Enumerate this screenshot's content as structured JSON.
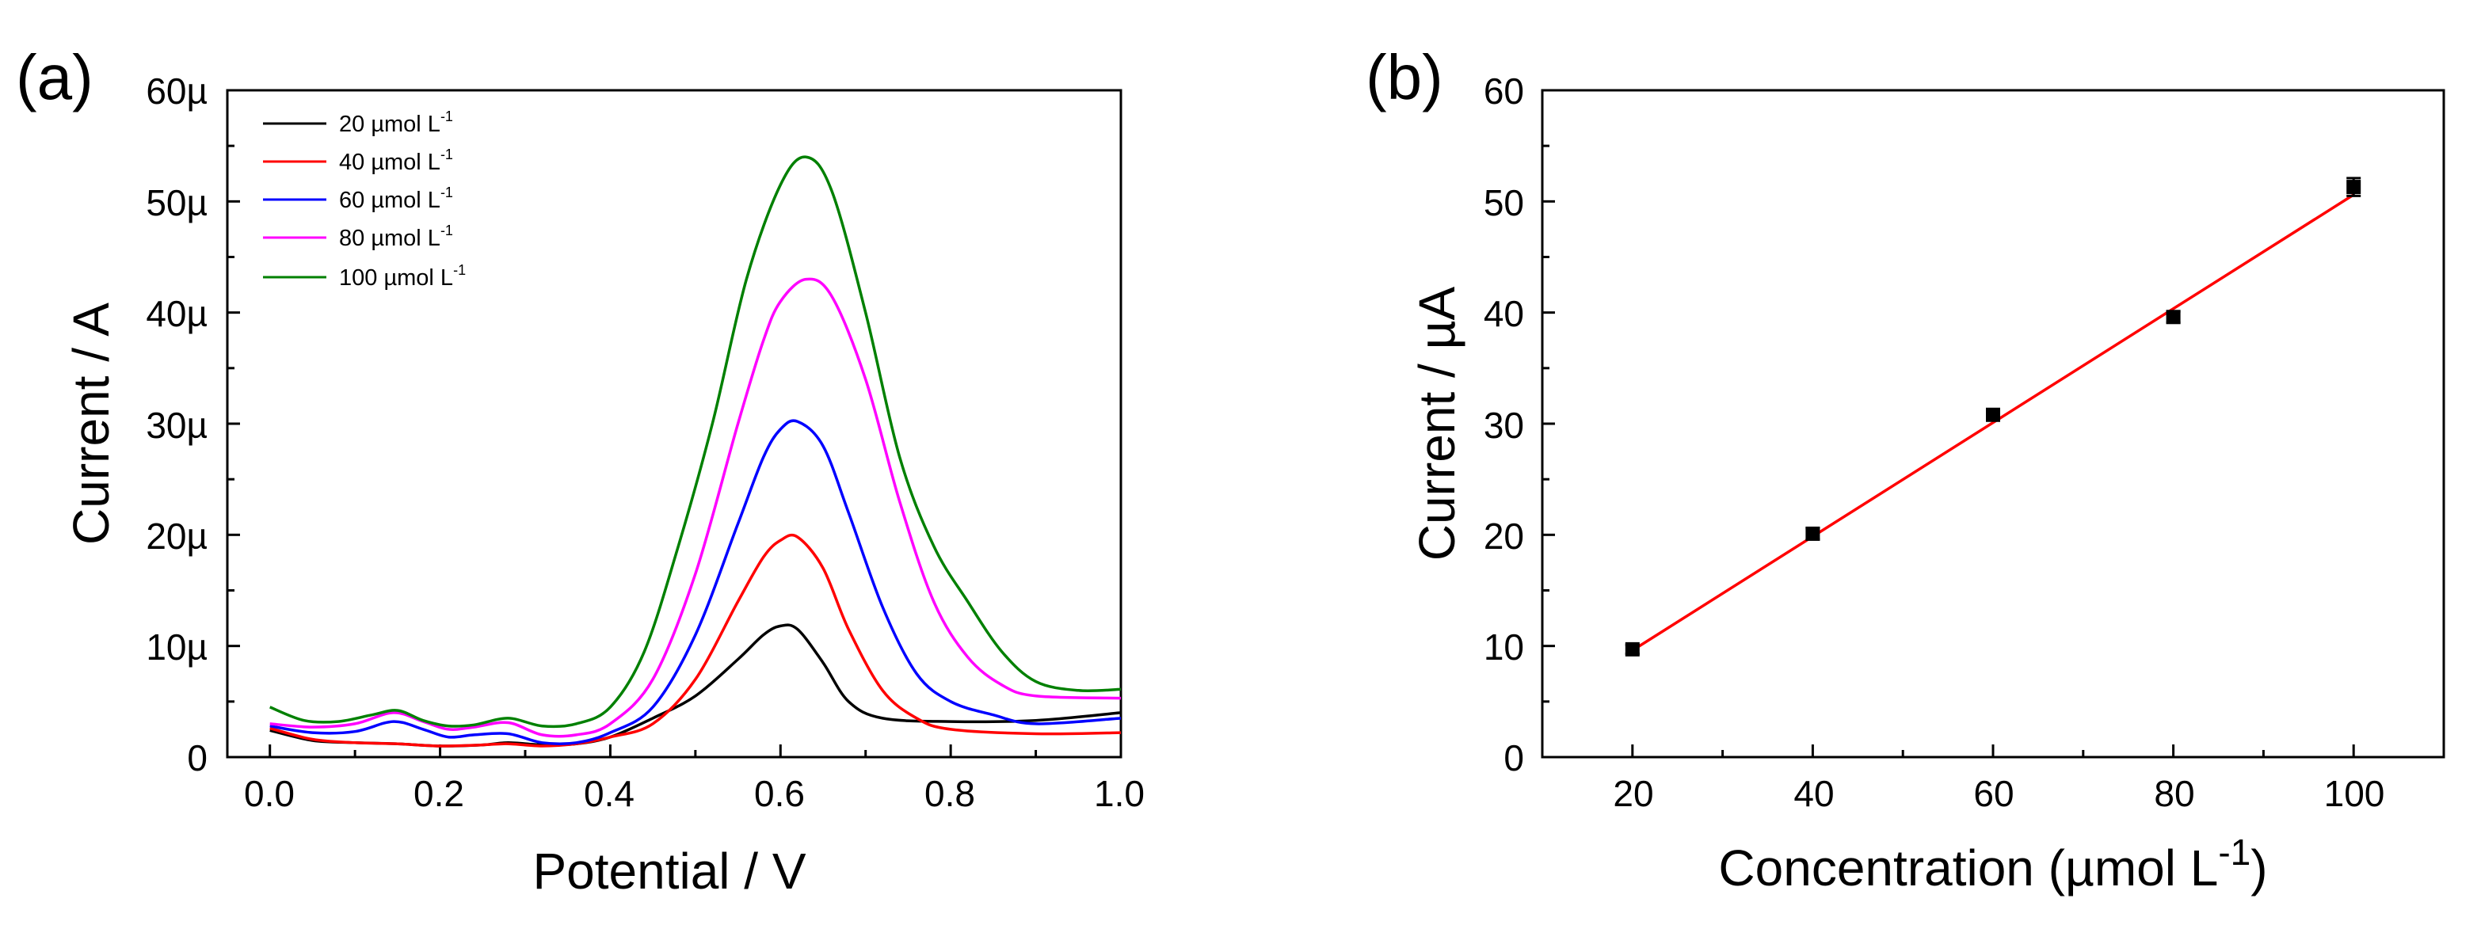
{
  "chart_data": [
    {
      "panel": "(a)",
      "type": "line",
      "xlabel": "Potential / V",
      "ylabel": "Current / A",
      "xlim": [
        -0.05,
        1.0
      ],
      "ylim": [
        0,
        60
      ],
      "x_ticks": [
        0.0,
        0.2,
        0.4,
        0.6,
        0.8,
        1.0
      ],
      "x_tick_labels": [
        "0.0",
        "0.2",
        "0.4",
        "0.6",
        "0.8",
        "1.0"
      ],
      "y_ticks": [
        0,
        10,
        20,
        30,
        40,
        50,
        60
      ],
      "y_tick_labels": [
        "0",
        "10µ",
        "20µ",
        "30µ",
        "40µ",
        "50µ",
        "60µ"
      ],
      "y_unit_note": "µA",
      "legend_position": "top-left",
      "series": [
        {
          "name": "20 µmol L",
          "name_sup": "-1",
          "color": "#000000",
          "x": [
            0.0,
            0.05,
            0.1,
            0.15,
            0.2,
            0.25,
            0.28,
            0.32,
            0.36,
            0.4,
            0.45,
            0.5,
            0.55,
            0.58,
            0.6,
            0.62,
            0.65,
            0.68,
            0.72,
            0.8,
            0.9,
            1.0
          ],
          "y": [
            2.4,
            1.5,
            1.3,
            1.2,
            1.0,
            1.1,
            1.3,
            1.1,
            1.2,
            1.8,
            3.5,
            5.5,
            8.8,
            11.0,
            11.8,
            11.5,
            8.5,
            5.0,
            3.5,
            3.2,
            3.3,
            4.0
          ]
        },
        {
          "name": "40 µmol L",
          "name_sup": "-1",
          "color": "#ff0000",
          "x": [
            0.0,
            0.05,
            0.1,
            0.15,
            0.2,
            0.25,
            0.28,
            0.32,
            0.36,
            0.4,
            0.45,
            0.5,
            0.55,
            0.58,
            0.6,
            0.62,
            0.65,
            0.68,
            0.72,
            0.76,
            0.8,
            0.9,
            1.0
          ],
          "y": [
            2.6,
            1.6,
            1.3,
            1.2,
            1.0,
            1.1,
            1.2,
            1.0,
            1.2,
            1.8,
            3.0,
            7.0,
            14.0,
            18.0,
            19.5,
            19.8,
            17.0,
            11.5,
            6.0,
            3.5,
            2.5,
            2.1,
            2.2
          ]
        },
        {
          "name": "60 µmol L",
          "name_sup": "-1",
          "color": "#0000ff",
          "x": [
            0.0,
            0.05,
            0.1,
            0.145,
            0.18,
            0.21,
            0.24,
            0.28,
            0.32,
            0.36,
            0.4,
            0.45,
            0.5,
            0.55,
            0.58,
            0.6,
            0.62,
            0.65,
            0.68,
            0.72,
            0.76,
            0.8,
            0.85,
            0.9,
            1.0
          ],
          "y": [
            2.8,
            2.2,
            2.3,
            3.2,
            2.5,
            1.8,
            2.0,
            2.1,
            1.3,
            1.3,
            2.2,
            4.5,
            11.0,
            21.0,
            27.0,
            29.5,
            30.2,
            28.0,
            22.0,
            13.5,
            7.5,
            5.0,
            3.8,
            3.0,
            3.5
          ]
        },
        {
          "name": "80 µmol L",
          "name_sup": "-1",
          "color": "#ff00ff",
          "x": [
            0.0,
            0.05,
            0.1,
            0.145,
            0.18,
            0.21,
            0.24,
            0.28,
            0.32,
            0.36,
            0.4,
            0.45,
            0.5,
            0.55,
            0.58,
            0.6,
            0.63,
            0.66,
            0.7,
            0.74,
            0.78,
            0.82,
            0.86,
            0.9,
            1.0
          ],
          "y": [
            3.0,
            2.7,
            3.0,
            4.0,
            3.2,
            2.5,
            2.7,
            3.1,
            2.0,
            2.0,
            3.0,
            7.0,
            16.5,
            30.0,
            37.5,
            41.0,
            43.0,
            41.5,
            34.0,
            23.0,
            14.0,
            9.0,
            6.5,
            5.5,
            5.3
          ]
        },
        {
          "name": "100 µmol L",
          "name_sup": "-1",
          "color": "#008000",
          "x": [
            0.0,
            0.04,
            0.08,
            0.12,
            0.15,
            0.18,
            0.21,
            0.24,
            0.28,
            0.32,
            0.36,
            0.4,
            0.44,
            0.48,
            0.52,
            0.56,
            0.6,
            0.63,
            0.66,
            0.7,
            0.74,
            0.78,
            0.82,
            0.86,
            0.9,
            0.95,
            1.0
          ],
          "y": [
            4.5,
            3.3,
            3.2,
            3.8,
            4.2,
            3.3,
            2.8,
            2.9,
            3.5,
            2.8,
            3.0,
            4.5,
            9.5,
            19.0,
            30.0,
            43.0,
            51.5,
            54.0,
            51.0,
            40.0,
            27.0,
            19.0,
            14.0,
            9.5,
            6.8,
            6.0,
            6.1
          ]
        }
      ]
    },
    {
      "panel": "(b)",
      "type": "scatter",
      "xlabel": "Concentration (µmol L",
      "xlabel_sup": "-1",
      "xlabel_close": ")",
      "ylabel": "Current / µA",
      "xlim": [
        10,
        110
      ],
      "ylim": [
        0,
        60
      ],
      "x_ticks": [
        20,
        40,
        60,
        80,
        100
      ],
      "x_tick_labels": [
        "20",
        "40",
        "60",
        "80",
        "100"
      ],
      "y_ticks": [
        0,
        10,
        20,
        30,
        40,
        50,
        60
      ],
      "y_tick_labels": [
        "0",
        "10",
        "20",
        "30",
        "40",
        "50",
        "60"
      ],
      "points": {
        "x": [
          20,
          40,
          60,
          80,
          100
        ],
        "y": [
          9.7,
          20.1,
          30.8,
          39.6,
          51.3
        ],
        "error": [
          0.4,
          0.5,
          0.5,
          0.5,
          0.8
        ],
        "color": "#000000"
      },
      "fit_line": {
        "x": [
          20,
          100
        ],
        "y": [
          9.6,
          50.6
        ],
        "color": "#ff0000"
      }
    }
  ]
}
